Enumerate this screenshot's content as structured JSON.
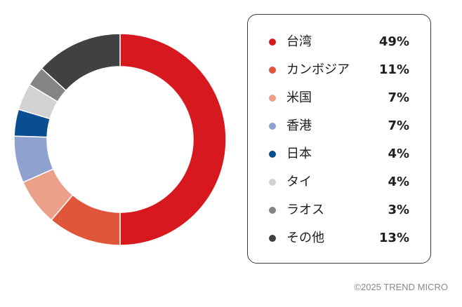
{
  "chart_data": {
    "type": "pie",
    "categories": [
      "台湾",
      "カンボジア",
      "米国",
      "香港",
      "日本",
      "タイ",
      "ラオス",
      "その他"
    ],
    "values": [
      49,
      11,
      7,
      7,
      4,
      4,
      3,
      13
    ],
    "value_labels": [
      "49%",
      "11%",
      "7%",
      "7%",
      "4%",
      "4%",
      "3%",
      "13%"
    ],
    "colors": [
      "#d7191f",
      "#df563a",
      "#eba08a",
      "#8fa2cf",
      "#0a4e92",
      "#d2d2d2",
      "#858585",
      "#414143"
    ],
    "unit": "%",
    "donut": true,
    "legend_position": "right"
  },
  "footer": {
    "copyright": "©2025 TREND MICRO"
  }
}
